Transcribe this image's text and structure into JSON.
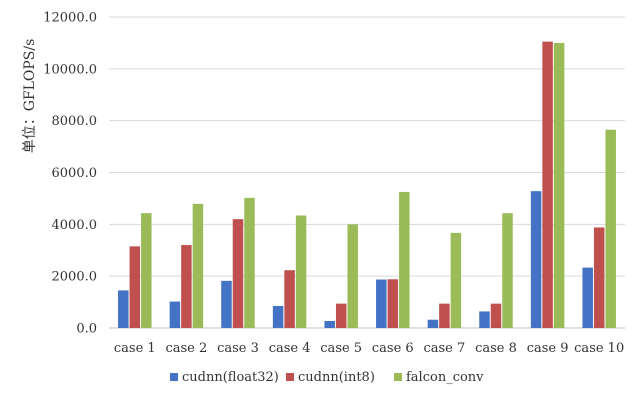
{
  "chart_data": {
    "type": "bar",
    "title": "",
    "xlabel": "",
    "ylabel": "单位：GFLOPS/s",
    "ylim": [
      0,
      12000
    ],
    "yticks": [
      "0.0",
      "2000.0",
      "4000.0",
      "6000.0",
      "8000.0",
      "10000.0",
      "12000.0"
    ],
    "ytick_values": [
      0,
      2000,
      4000,
      6000,
      8000,
      10000,
      12000
    ],
    "grid": "horizontal",
    "legend_position": "bottom",
    "categories": [
      "case 1",
      "case 2",
      "case 3",
      "case 4",
      "case 5",
      "case 6",
      "case 7",
      "case 8",
      "case 9",
      "case 10"
    ],
    "series": [
      {
        "name": "cudnn(float32)",
        "color": "#4472c4",
        "values": [
          1450,
          1020,
          1820,
          850,
          270,
          1870,
          320,
          640,
          5280,
          2330
        ]
      },
      {
        "name": "cudnn(int8)",
        "color": "#c0504d",
        "values": [
          3150,
          3200,
          4200,
          2230,
          940,
          1880,
          940,
          940,
          11050,
          3880
        ]
      },
      {
        "name": "falcon_conv",
        "color": "#9bbb59",
        "values": [
          4430,
          4790,
          5020,
          4340,
          4000,
          5250,
          3670,
          4430,
          11000,
          7650
        ]
      }
    ]
  }
}
